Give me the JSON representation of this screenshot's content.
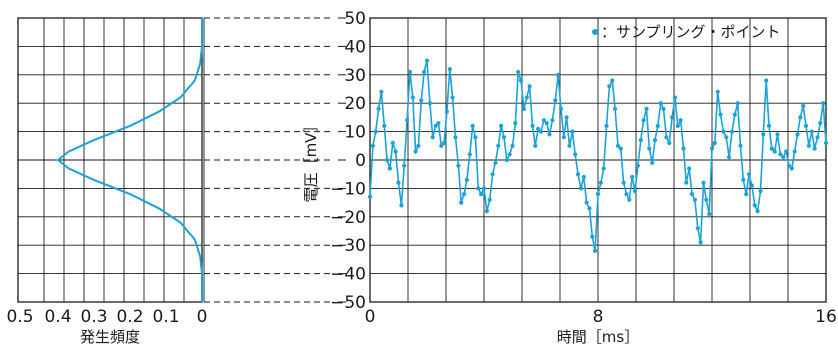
{
  "chart_data": [
    {
      "type": "line",
      "name": "histogram",
      "xlabel": "発生頻度",
      "x_ticks": [
        "0.5",
        "0.4",
        "0.3",
        "0.2",
        "0.1",
        "0"
      ],
      "xlim": [
        0.5,
        0
      ],
      "ylim": [
        -50,
        50
      ],
      "series": [
        {
          "x": [
            0,
            0.0,
            0.005,
            0.02,
            0.06,
            0.12,
            0.2,
            0.3,
            0.37,
            0.4,
            0.37,
            0.3,
            0.2,
            0.12,
            0.06,
            0.02,
            0.005,
            0.0,
            0
          ],
          "y": [
            50,
            40,
            34,
            28,
            22,
            17,
            12,
            7,
            3,
            0,
            -3,
            -7,
            -12,
            -17,
            -22,
            -28,
            -34,
            -40,
            -50
          ]
        }
      ]
    },
    {
      "type": "line",
      "name": "waveform",
      "xlabel": "時間［ms］",
      "ylabel": "電圧［mV］",
      "x_ticks": [
        "0",
        "8",
        "16"
      ],
      "y_ticks": [
        "50",
        "40",
        "30",
        "20",
        "10",
        "0",
        "−10",
        "−20",
        "−30",
        "−40",
        "−50"
      ],
      "xlim": [
        0,
        16
      ],
      "ylim": [
        -50,
        50
      ],
      "legend": "：サンプリング・ポイント",
      "legend_position": "top-right",
      "series": [
        {
          "x": [
            0,
            0.1,
            0.2,
            0.3,
            0.4,
            0.5,
            0.6,
            0.7,
            0.8,
            0.9,
            1.0,
            1.1,
            1.2,
            1.3,
            1.4,
            1.5,
            1.6,
            1.7,
            1.8,
            1.9,
            2.0,
            2.1,
            2.2,
            2.3,
            2.4,
            2.5,
            2.6,
            2.7,
            2.8,
            2.9,
            3.0,
            3.1,
            3.2,
            3.3,
            3.4,
            3.5,
            3.6,
            3.7,
            3.8,
            3.9,
            4.0,
            4.1,
            4.2,
            4.3,
            4.4,
            4.5,
            4.6,
            4.7,
            4.8,
            4.9,
            5.0,
            5.1,
            5.2,
            5.3,
            5.4,
            5.5,
            5.6,
            5.7,
            5.8,
            5.9,
            6.0,
            6.1,
            6.2,
            6.3,
            6.4,
            6.5,
            6.6,
            6.7,
            6.8,
            6.9,
            7.0,
            7.1,
            7.2,
            7.3,
            7.4,
            7.5,
            7.6,
            7.7,
            7.8,
            7.9,
            8.0,
            8.1,
            8.2,
            8.3,
            8.4,
            8.5,
            8.6,
            8.7,
            8.8,
            8.9,
            9.0,
            9.1,
            9.2,
            9.3,
            9.4,
            9.5,
            9.6,
            9.7,
            9.8,
            9.9,
            10.0,
            10.1,
            10.2,
            10.3,
            10.4,
            10.5,
            10.6,
            10.7,
            10.8,
            10.9,
            11.0,
            11.1,
            11.2,
            11.3,
            11.4,
            11.5,
            11.6,
            11.7,
            11.8,
            11.9,
            12.0,
            12.1,
            12.2,
            12.3,
            12.4,
            12.5,
            12.6,
            12.7,
            12.8,
            12.9,
            13.0,
            13.1,
            13.2,
            13.3,
            13.4,
            13.5,
            13.6,
            13.7,
            13.8,
            13.9,
            14.0,
            14.1,
            14.2,
            14.3,
            14.4,
            14.5,
            14.6,
            14.7,
            14.8,
            14.9,
            15.0,
            15.1,
            15.2,
            15.3,
            15.4,
            15.5,
            15.6,
            15.7,
            15.8,
            15.9,
            16.0
          ],
          "y": [
            -13,
            5,
            10,
            18,
            24,
            12,
            0,
            -3,
            6,
            3,
            -8,
            -16,
            -2,
            14,
            31,
            22,
            3,
            5,
            21,
            31,
            35,
            20,
            8,
            12,
            13,
            5,
            6,
            17,
            32,
            22,
            8,
            -2,
            -15,
            -12,
            -7,
            2,
            12,
            8,
            -10,
            -12,
            -10,
            -18,
            -14,
            -5,
            -1,
            5,
            12,
            8,
            0,
            2,
            5,
            13,
            31,
            28,
            18,
            22,
            26,
            12,
            5,
            11,
            10,
            14,
            13,
            9,
            14,
            21,
            30,
            18,
            8,
            15,
            5,
            10,
            2,
            -5,
            -10,
            -6,
            -15,
            -17,
            -27,
            -32,
            -12,
            -8,
            -3,
            12,
            26,
            28,
            18,
            5,
            4,
            -8,
            -12,
            -14,
            -6,
            -11,
            -2,
            7,
            14,
            18,
            4,
            -1,
            7,
            12,
            20,
            18,
            8,
            6,
            15,
            22,
            12,
            14,
            4,
            -8,
            -3,
            -12,
            -14,
            -24,
            -29,
            -8,
            -14,
            -19,
            4,
            6,
            24,
            16,
            10,
            8,
            1,
            10,
            16,
            20,
            5,
            -7,
            -12,
            -5,
            -9,
            -16,
            -18,
            -11,
            9,
            28,
            12,
            4,
            3,
            9,
            2,
            1,
            3,
            -2,
            -3,
            3,
            9,
            15,
            19,
            12,
            5,
            10,
            4,
            8,
            13,
            20,
            6
          ]
        }
      ]
    }
  ],
  "colors": {
    "line": "#1aa2da",
    "grid": "#1a1a1a"
  }
}
